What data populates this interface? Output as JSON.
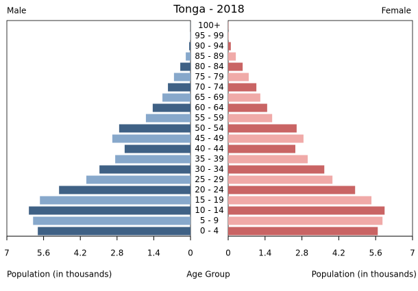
{
  "chart_data": {
    "type": "pyramid",
    "title": "Tonga - 2018",
    "x_label": "Population (in thousands)",
    "y_label": "Age Group",
    "categories": [
      "0 - 4",
      "5 - 9",
      "10 - 14",
      "15 - 19",
      "20 - 24",
      "25 - 29",
      "30 - 34",
      "35 - 39",
      "40 - 44",
      "45 - 49",
      "50 - 54",
      "55 - 59",
      "60 - 64",
      "65 - 69",
      "70 - 74",
      "75 - 79",
      "80 - 84",
      "85 - 89",
      "90 - 94",
      "95 - 99",
      "100+"
    ],
    "series": [
      {
        "name": "Male",
        "colors": [
          "#3f6185",
          "#87a8cb"
        ],
        "values": [
          5.82,
          6.0,
          6.16,
          5.74,
          5.01,
          3.97,
          3.47,
          2.87,
          2.51,
          2.98,
          2.72,
          1.7,
          1.44,
          1.07,
          0.86,
          0.63,
          0.39,
          0.18,
          0.05,
          0.01,
          0.005
        ]
      },
      {
        "name": "Female",
        "colors": [
          "#c96464",
          "#f0aaa8"
        ],
        "values": [
          5.68,
          5.86,
          5.94,
          5.44,
          4.82,
          3.96,
          3.65,
          3.02,
          2.55,
          2.86,
          2.6,
          1.67,
          1.48,
          1.22,
          1.07,
          0.78,
          0.55,
          0.29,
          0.1,
          0.02,
          0.01
        ]
      }
    ],
    "xlim": [
      0,
      7
    ],
    "xticks": [
      0,
      1.4,
      2.8,
      4.2,
      5.6,
      7
    ]
  }
}
